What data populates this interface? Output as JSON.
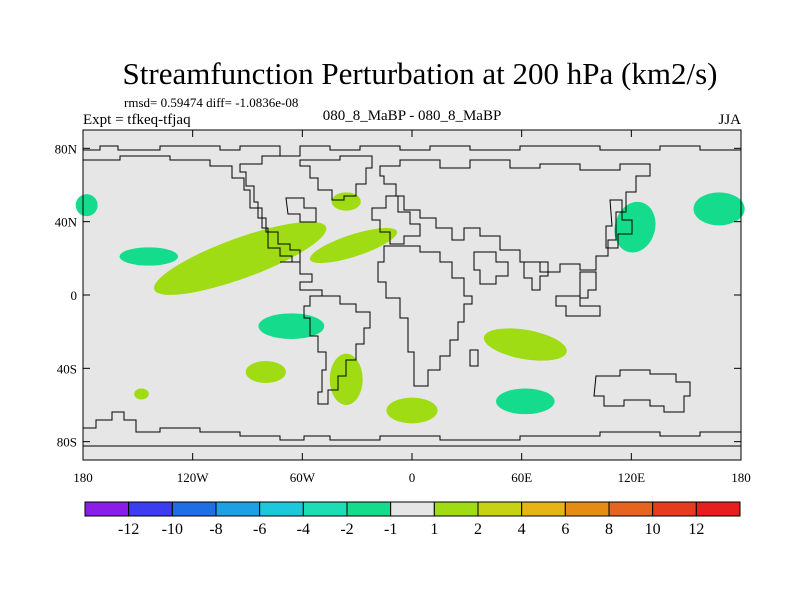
{
  "chart_data": {
    "type": "heatmap",
    "title": "Streamfunction Perturbation at 200 hPa (km2/s)",
    "subtitle_left": "Expt = tfkeq-tfjaq",
    "stats": "rmsd= 0.59474 diff= -1.0836e-08",
    "subtitle_center": "080_8_MaBP - 080_8_MaBP",
    "subtitle_right": "JJA",
    "x_ticks": [
      {
        "value": -180,
        "label": "180"
      },
      {
        "value": -120,
        "label": "120W"
      },
      {
        "value": -60,
        "label": "60W"
      },
      {
        "value": 0,
        "label": "0"
      },
      {
        "value": 60,
        "label": "60E"
      },
      {
        "value": 120,
        "label": "120E"
      },
      {
        "value": 180,
        "label": "180"
      }
    ],
    "y_ticks": [
      {
        "value": 80,
        "label": "80N"
      },
      {
        "value": 40,
        "label": "40N"
      },
      {
        "value": 0,
        "label": "0"
      },
      {
        "value": -40,
        "label": "40S"
      },
      {
        "value": -80,
        "label": "80S"
      }
    ],
    "xlim": [
      -180,
      180
    ],
    "ylim": [
      -90,
      90
    ],
    "colorbar": {
      "levels": [
        "-12",
        "-10",
        "-8",
        "-6",
        "-4",
        "-2",
        "-1",
        "1",
        "2",
        "4",
        "6",
        "8",
        "10",
        "12"
      ],
      "colors": [
        "#8a1ee6",
        "#3c3cf0",
        "#1e6ee6",
        "#1ea0e6",
        "#1ec8dc",
        "#1edcb4",
        "#14dc8c",
        "#e6e6e6",
        "#a0dc14",
        "#c8d214",
        "#e6b414",
        "#e68c14",
        "#e6641e",
        "#e63c1e",
        "#e61e1e"
      ],
      "background": "#e6e6e6"
    },
    "anomalies": [
      {
        "lon": -178,
        "lat": 49,
        "rx": 6,
        "ry": 6,
        "category": "-1 to -2",
        "color": "#14dc8c"
      },
      {
        "lon": -144,
        "lat": 21,
        "rx": 16,
        "ry": 5,
        "category": "-1 to -2",
        "color": "#14dc8c"
      },
      {
        "lon": -94,
        "lat": 20,
        "rx": 50,
        "ry": 11,
        "angle": -20,
        "category": "1 to 2",
        "color": "#a0dc14"
      },
      {
        "lon": -32,
        "lat": 27,
        "rx": 25,
        "ry": 6,
        "angle": -18,
        "category": "1 to 2",
        "color": "#a0dc14"
      },
      {
        "lon": -36,
        "lat": 51,
        "rx": 8,
        "ry": 5,
        "category": "1 to 2",
        "color": "#a0dc14"
      },
      {
        "lon": -66,
        "lat": -17,
        "rx": 18,
        "ry": 7,
        "category": "-1 to -2",
        "color": "#14dc8c"
      },
      {
        "lon": -80,
        "lat": -42,
        "rx": 11,
        "ry": 6,
        "category": "1 to 2",
        "color": "#a0dc14"
      },
      {
        "lon": -148,
        "lat": -54,
        "rx": 4,
        "ry": 3,
        "category": "1 to 2",
        "color": "#a0dc14"
      },
      {
        "lon": -36,
        "lat": -46,
        "rx": 9,
        "ry": 14,
        "category": "1 to 2",
        "color": "#a0dc14"
      },
      {
        "lon": 0,
        "lat": -63,
        "rx": 14,
        "ry": 7,
        "category": "1 to 2",
        "color": "#a0dc14"
      },
      {
        "lon": 62,
        "lat": -27,
        "rx": 23,
        "ry": 8,
        "angle": 10,
        "category": "1 to 2",
        "color": "#a0dc14"
      },
      {
        "lon": 62,
        "lat": -58,
        "rx": 16,
        "ry": 7,
        "category": "-1 to -2",
        "color": "#14dc8c"
      },
      {
        "lon": 122,
        "lat": 37,
        "rx": 11,
        "ry": 14,
        "angle": 15,
        "category": "-1 to -2",
        "color": "#14dc8c"
      },
      {
        "lon": 168,
        "lat": 47,
        "rx": 14,
        "ry": 9,
        "category": "-1 to -2",
        "color": "#14dc8c"
      }
    ]
  }
}
